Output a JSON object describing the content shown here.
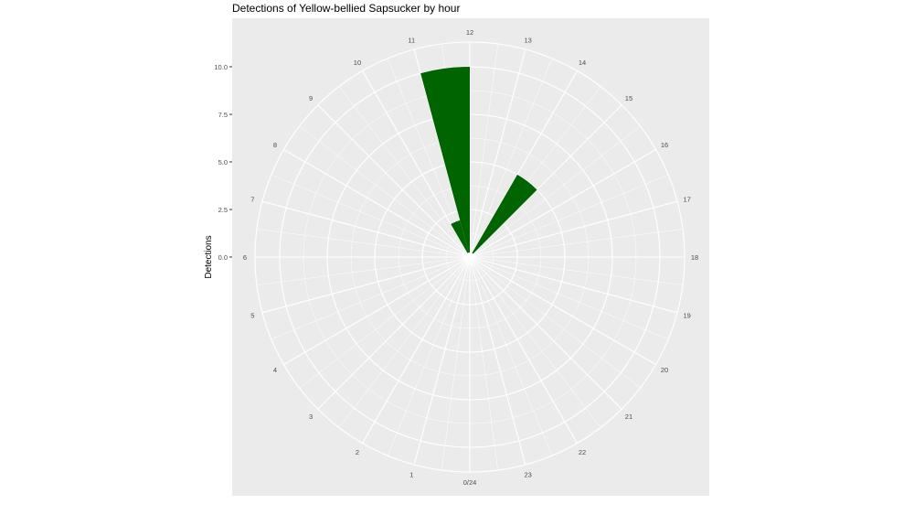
{
  "chart_data": {
    "type": "bar",
    "coord": "polar",
    "title": "Detections of Yellow-bellied Sapsucker by hour",
    "xlabel": "",
    "ylabel": "Detections",
    "x_tick_labels": [
      "0/24",
      "1",
      "2",
      "3",
      "4",
      "5",
      "6",
      "7",
      "8",
      "9",
      "10",
      "11",
      "12",
      "13",
      "14",
      "15",
      "16",
      "17",
      "18",
      "19",
      "20",
      "21",
      "22",
      "23"
    ],
    "y_ticks": [
      0,
      2.5,
      5,
      7.5,
      10
    ],
    "y_tick_labels": [
      "0.0",
      "2.5",
      "5.0",
      "7.5",
      "10.0"
    ],
    "ylim": [
      0,
      10
    ],
    "categories": [
      10.5,
      11.5,
      14.5
    ],
    "values": [
      2,
      10,
      5
    ],
    "bar_color": "#006400",
    "panel_background": "#ebebeb",
    "grid_color": "#ffffff",
    "grid": true,
    "legend": "none"
  }
}
